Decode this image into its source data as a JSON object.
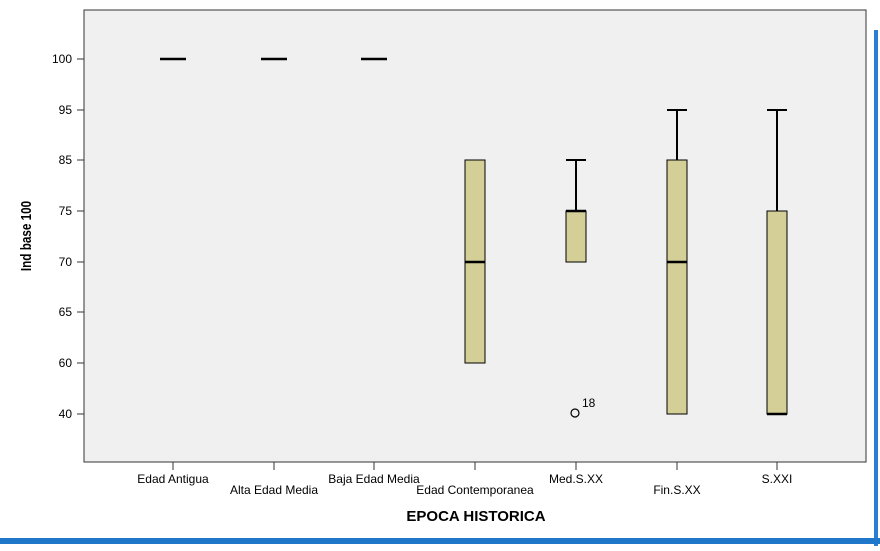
{
  "chart_data": {
    "type": "boxplot",
    "xlabel": "EPOCA HISTORICA",
    "ylabel": "Ind base 100",
    "y_ticks": [
      "100",
      "95",
      "85",
      "75",
      "70",
      "65",
      "60",
      "40"
    ],
    "categories": [
      "Edad Antigua",
      "Alta Edad Media",
      "Baja Edad Media",
      "Edad Contemporanea",
      "Med.S.XX",
      "Fin.S.XX",
      "S.XXI"
    ],
    "boxes": [
      {
        "category": "Edad Antigua",
        "min": 100,
        "q1": 100,
        "median": 100,
        "q3": 100,
        "max": 100
      },
      {
        "category": "Alta Edad Media",
        "min": 100,
        "q1": 100,
        "median": 100,
        "q3": 100,
        "max": 100
      },
      {
        "category": "Baja Edad Media",
        "min": 100,
        "q1": 100,
        "median": 100,
        "q3": 100,
        "max": 100
      },
      {
        "category": "Edad Contemporanea",
        "min": 60,
        "q1": 60,
        "median": 70,
        "q3": 85,
        "max": 85
      },
      {
        "category": "Med.S.XX",
        "min": 70,
        "q1": 70,
        "median": 75,
        "q3": 75,
        "max": 85
      },
      {
        "category": "Fin.S.XX",
        "min": 40,
        "q1": 40,
        "median": 70,
        "q3": 85,
        "max": 95
      },
      {
        "category": "S.XXI",
        "min": 40,
        "q1": 40,
        "median": 40,
        "q3": 75,
        "max": 95
      }
    ],
    "outliers": [
      {
        "category": "Med.S.XX",
        "value": 40,
        "label": "18"
      }
    ],
    "colors": {
      "box_fill": "#d4cf97",
      "plot_bg": "#f0f0f0",
      "frame_blue": "#1f77c9"
    },
    "grid": false,
    "legend": "none"
  }
}
